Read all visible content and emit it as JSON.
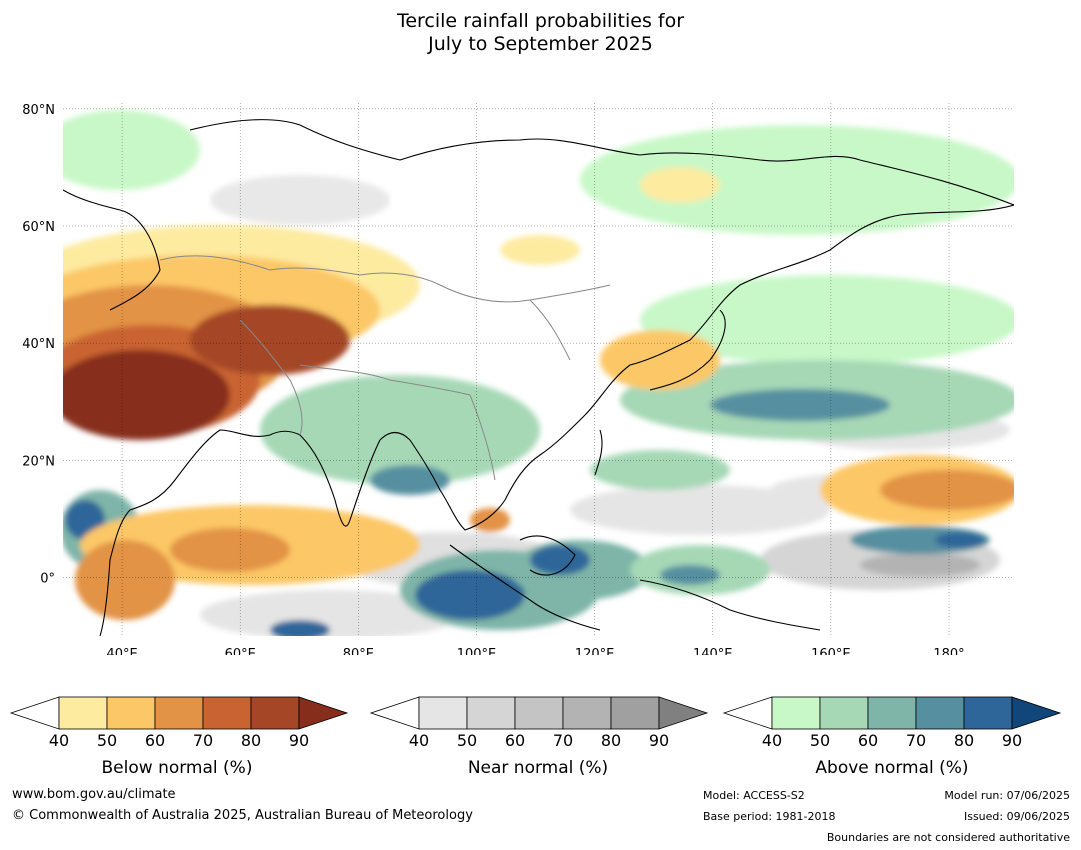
{
  "title": {
    "line1": "Tercile rainfall probabilities for",
    "line2": "July to September 2025"
  },
  "map": {
    "lat_labels": [
      "80°N",
      "60°N",
      "40°N",
      "20°N",
      "0°"
    ],
    "lon_labels": [
      "40°E",
      "60°E",
      "80°E",
      "100°E",
      "120°E",
      "140°E",
      "160°E",
      "180°"
    ],
    "lat_values": [
      80,
      60,
      40,
      20,
      0
    ],
    "lon_values": [
      40,
      60,
      80,
      100,
      120,
      140,
      160,
      180
    ],
    "extent": {
      "lon_min": 30,
      "lon_max": 191,
      "lat_min": -10,
      "lat_max": 81
    }
  },
  "colorbars": [
    {
      "label": "Below normal (%)",
      "ticks": [
        "40",
        "50",
        "60",
        "70",
        "80",
        "90"
      ],
      "colors": [
        "#ffffff",
        "#fdeba0",
        "#fcc766",
        "#e29345",
        "#c96332",
        "#a54726",
        "#872d1c"
      ]
    },
    {
      "label": "Near normal (%)",
      "ticks": [
        "40",
        "50",
        "60",
        "70",
        "80",
        "90"
      ],
      "colors": [
        "#ffffff",
        "#e5e5e5",
        "#d5d5d5",
        "#c4c4c4",
        "#b3b3b3",
        "#a0a0a0",
        "#808080"
      ]
    },
    {
      "label": "Above normal (%)",
      "ticks": [
        "40",
        "50",
        "60",
        "70",
        "80",
        "90"
      ],
      "colors": [
        "#ffffff",
        "#c8f8c8",
        "#a6d8b6",
        "#7eb5a8",
        "#5690a0",
        "#2e6699",
        "#10467a"
      ]
    }
  ],
  "footer": {
    "url": "www.bom.gov.au/climate",
    "copyright": "© Commonwealth of Australia 2025, Australian Bureau of Meteorology",
    "model": "Model: ACCESS-S2",
    "base_period": "Base period: 1981-2018",
    "model_run": "Model run: 07/06/2025",
    "issued": "Issued: 09/06/2025",
    "boundaries": "Boundaries are not considered authoritative"
  }
}
